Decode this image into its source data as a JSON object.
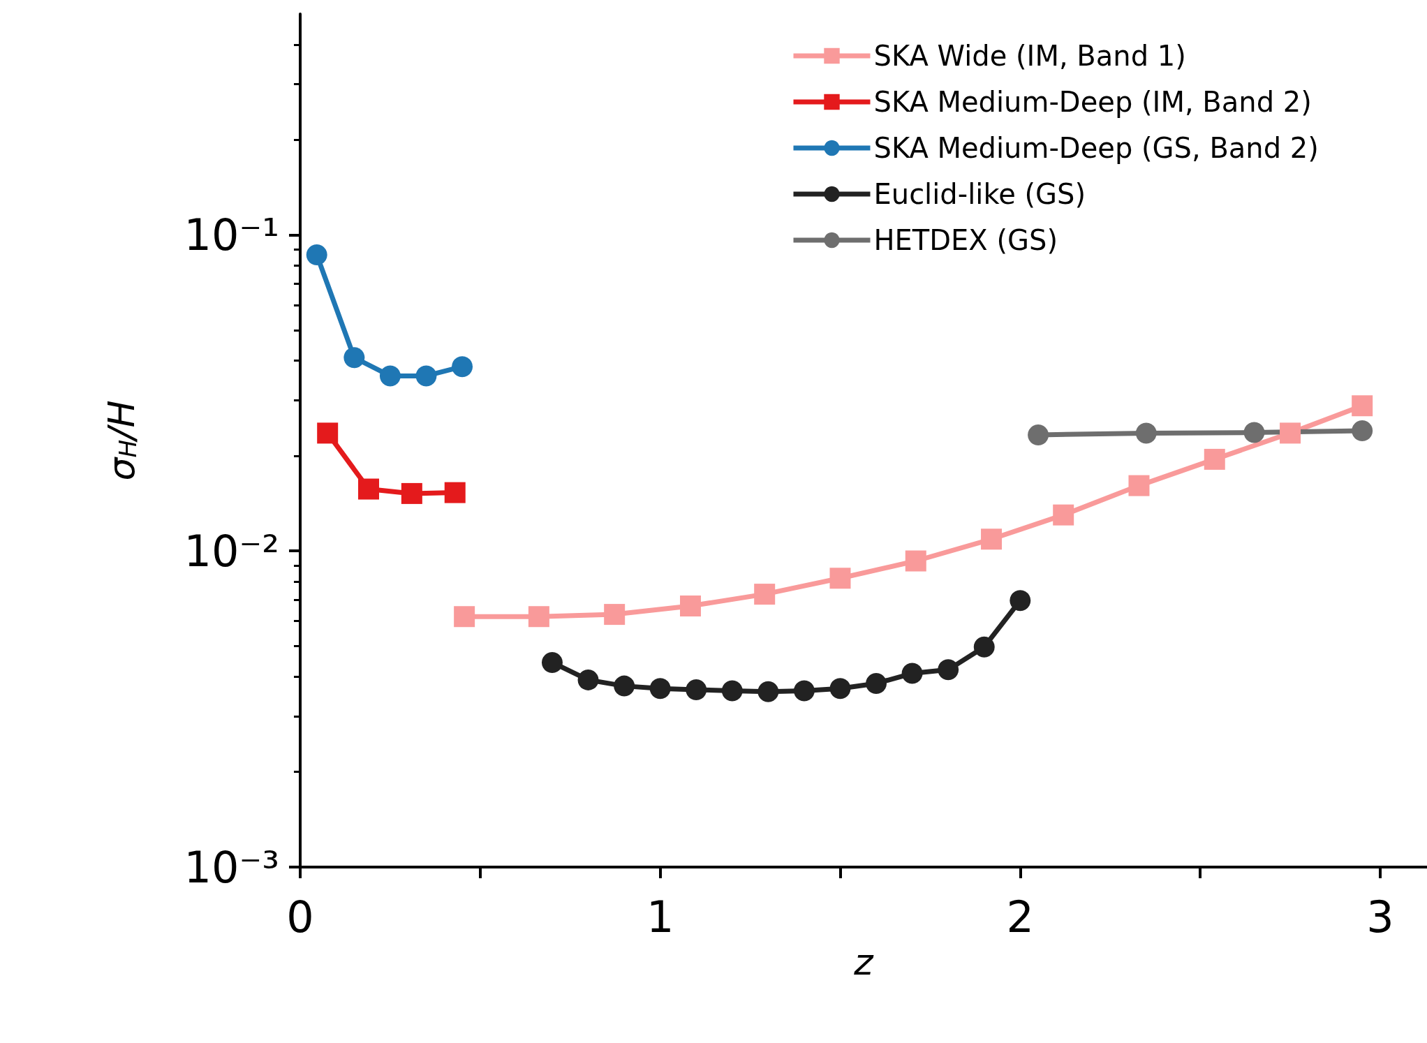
{
  "chart_data": {
    "type": "line",
    "xlabel": "z",
    "ylabel": "σ$_{H}$/H",
    "log": "y",
    "legend": "top right",
    "grid": false,
    "xlim": [
      0,
      3.13
    ],
    "xticks": [
      0,
      {
        "value": 0.5,
        "label": null
      },
      1,
      {
        "value": 1.5,
        "label": null
      },
      2,
      {
        "value": 2.5,
        "label": null
      },
      3
    ],
    "ylim": [
      0.001,
      0.5
    ],
    "yticks": [
      {
        "value": 0.001,
        "label": "10⁻³"
      },
      {
        "value": 0.01,
        "label": "10⁻²"
      },
      {
        "value": 0.1,
        "label": "10⁻¹"
      }
    ],
    "series": [
      {
        "name": "SKA Wide (IM, Band 1)",
        "color": "#f99a9a",
        "marker": "square",
        "x": [
          0.456,
          0.663,
          0.873,
          1.084,
          1.29,
          1.5,
          1.71,
          1.92,
          2.12,
          2.33,
          2.54,
          2.75,
          2.95
        ],
        "values": [
          0.0062,
          0.0062,
          0.0063,
          0.0067,
          0.0073,
          0.0082,
          0.0093,
          0.0109,
          0.013,
          0.0161,
          0.0195,
          0.0236,
          0.0288
        ]
      },
      {
        "name": "SKA Medium-Deep (IM, Band 2)",
        "color": "#e41a1c",
        "marker": "square",
        "x": [
          0.076,
          0.19,
          0.31,
          0.43
        ],
        "values": [
          0.0236,
          0.0157,
          0.0152,
          0.0153
        ]
      },
      {
        "name": "SKA Medium-Deep (GS, Band 2)",
        "color": "#1f77b4",
        "marker": "circle",
        "x": [
          0.046,
          0.15,
          0.25,
          0.35,
          0.45
        ],
        "values": [
          0.0865,
          0.0409,
          0.0358,
          0.0358,
          0.0383
        ]
      },
      {
        "name": "Euclid-like (GS)",
        "color": "#222222",
        "marker": "circle",
        "x": [
          0.7,
          0.8,
          0.9,
          1.0,
          1.1,
          1.2,
          1.3,
          1.4,
          1.5,
          1.6,
          1.7,
          1.8,
          1.9,
          2.0
        ],
        "values": [
          0.00444,
          0.00391,
          0.00374,
          0.00367,
          0.00364,
          0.00361,
          0.00359,
          0.00361,
          0.00367,
          0.00381,
          0.0041,
          0.00421,
          0.00497,
          0.00697
        ]
      },
      {
        "name": "HETDEX (GS)",
        "color": "#6e6e6e",
        "marker": "circle",
        "x": [
          2.05,
          2.35,
          2.65,
          2.95
        ],
        "values": [
          0.0233,
          0.0236,
          0.0237,
          0.024
        ]
      }
    ]
  }
}
